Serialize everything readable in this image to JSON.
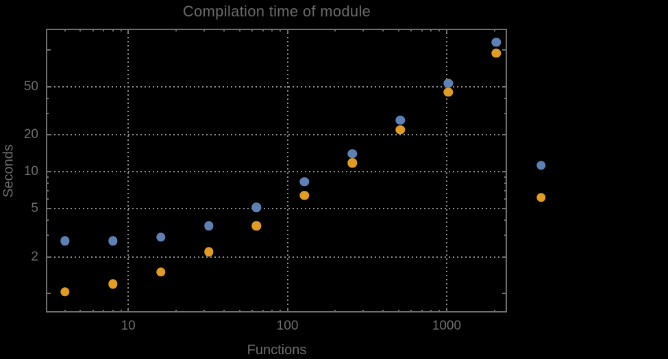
{
  "title": "Compilation time of module",
  "axes": {
    "x_label": "Functions",
    "y_label": "Seconds"
  },
  "colors": {
    "background": "#000000",
    "frame": "#707070",
    "grid": "#8f8f8f",
    "text": "#6e6e6e",
    "title_text": "#696969",
    "series_blue": "#5E81B5",
    "series_orange": "#E19C24"
  },
  "chart_data": {
    "type": "scatter",
    "x_scale": "log",
    "y_scale": "log",
    "title": "Compilation time of module",
    "xlabel": "Functions",
    "ylabel": "Seconds",
    "xlim": [
      3.04,
      2394
    ],
    "ylim": [
      0.7,
      149
    ],
    "grid": "dotted",
    "x": [
      4,
      8,
      16,
      32,
      64,
      128,
      256,
      512,
      1024,
      2048
    ],
    "series": [
      {
        "name": "blue",
        "color": "#5E81B5",
        "values": [
          2.7,
          2.7,
          2.9,
          3.6,
          5.1,
          8.3,
          14,
          26.5,
          53,
          115
        ]
      },
      {
        "name": "orange",
        "color": "#E19C24",
        "values": [
          1.03,
          1.2,
          1.5,
          2.2,
          3.6,
          6.4,
          11.8,
          22,
          45,
          94
        ]
      }
    ],
    "x_ticks": {
      "major": [
        10,
        100,
        1000
      ],
      "labels": [
        "10",
        "100",
        "1000"
      ],
      "minor": [
        4,
        5,
        6,
        7,
        8,
        9,
        20,
        30,
        40,
        50,
        60,
        70,
        80,
        90,
        200,
        300,
        400,
        500,
        600,
        700,
        800,
        900,
        2000
      ]
    },
    "y_ticks": {
      "major": [
        2,
        5,
        10,
        20,
        50
      ],
      "labels": [
        "2",
        "5",
        "10",
        "20",
        "50"
      ],
      "major_unlabeled": [
        1,
        100
      ],
      "minor": [
        3,
        4,
        6,
        7,
        8,
        9,
        30,
        40
      ]
    },
    "gridlines": {
      "x": [
        10,
        100,
        1000
      ],
      "y": [
        2,
        5,
        10,
        20,
        50
      ]
    },
    "legend": {
      "position": "right-outside",
      "markers": [
        {
          "series": "blue",
          "color": "#5E81B5"
        },
        {
          "series": "orange",
          "color": "#E19C24"
        }
      ]
    }
  }
}
